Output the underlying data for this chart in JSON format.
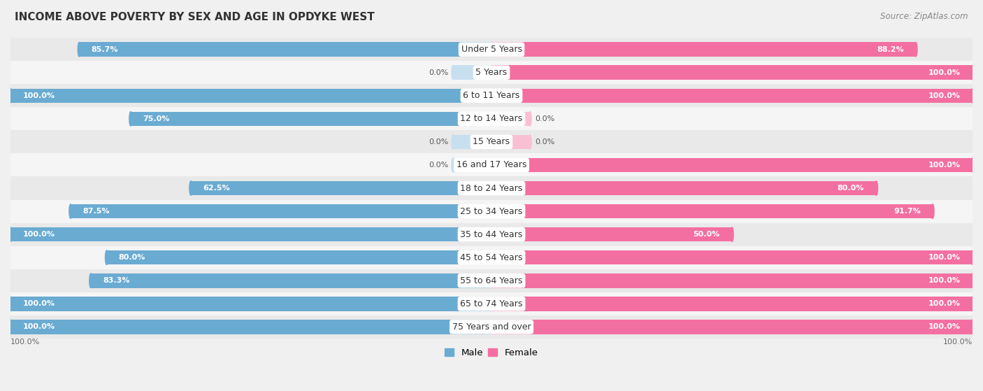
{
  "title": "INCOME ABOVE POVERTY BY SEX AND AGE IN OPDYKE WEST",
  "source": "Source: ZipAtlas.com",
  "categories": [
    "Under 5 Years",
    "5 Years",
    "6 to 11 Years",
    "12 to 14 Years",
    "15 Years",
    "16 and 17 Years",
    "18 to 24 Years",
    "25 to 34 Years",
    "35 to 44 Years",
    "45 to 54 Years",
    "55 to 64 Years",
    "65 to 74 Years",
    "75 Years and over"
  ],
  "male": [
    85.7,
    0.0,
    100.0,
    75.0,
    0.0,
    0.0,
    62.5,
    87.5,
    100.0,
    80.0,
    83.3,
    100.0,
    100.0
  ],
  "female": [
    88.2,
    100.0,
    100.0,
    0.0,
    0.0,
    100.0,
    80.0,
    91.7,
    50.0,
    100.0,
    100.0,
    100.0,
    100.0
  ],
  "male_color": "#6aabd2",
  "female_color": "#f46fa1",
  "male_light_color": "#c8dff0",
  "female_light_color": "#f9c0d4",
  "background_color": "#f0f0f0",
  "row_color_odd": "#f7f7f7",
  "row_color_even": "#e8e8e8",
  "label_fontsize": 8.0,
  "cat_fontsize": 9.0,
  "title_fontsize": 11,
  "source_fontsize": 8.5
}
